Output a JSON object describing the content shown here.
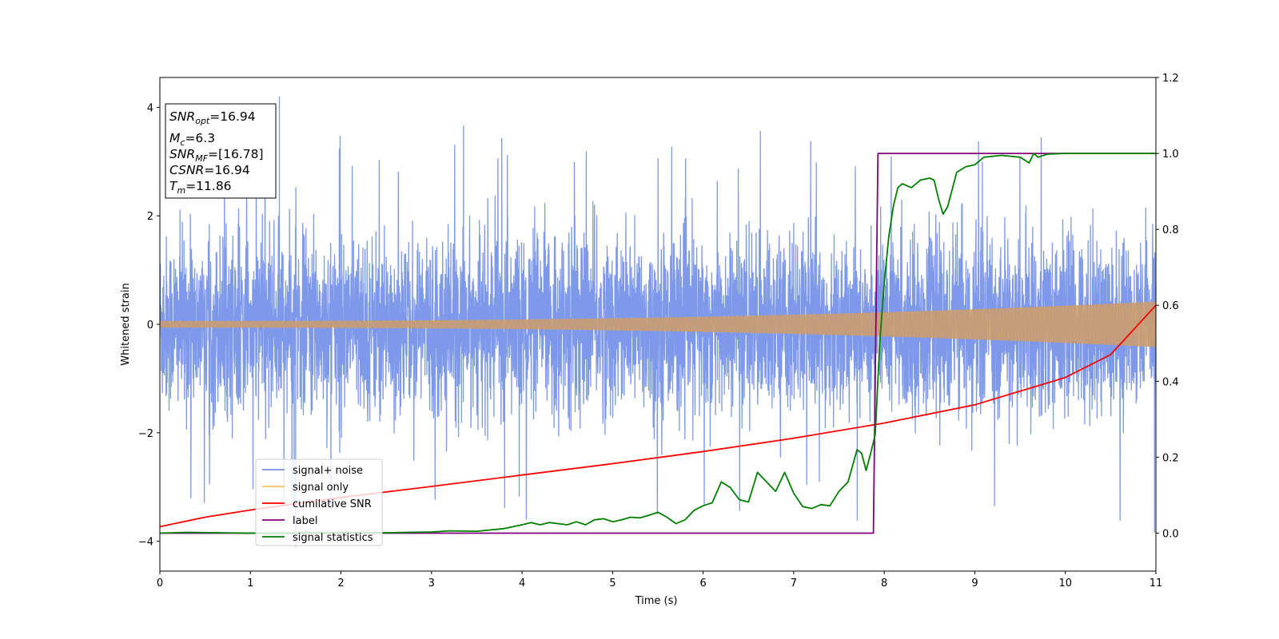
{
  "chart_data": {
    "type": "line",
    "xlabel": "Time (s)",
    "ylabel": "Whitened strain",
    "xlim": [
      0,
      11
    ],
    "ylim": [
      -4.55,
      4.55
    ],
    "y2lim": [
      -0.1,
      1.2
    ],
    "xticks": [
      0,
      1,
      2,
      3,
      4,
      5,
      6,
      7,
      8,
      9,
      10,
      11
    ],
    "yticks": [
      -4,
      -2,
      0,
      2,
      4
    ],
    "y2ticks": [
      "0.0",
      "0.2",
      "0.4",
      "0.6",
      "0.8",
      "1.0",
      "1.2"
    ],
    "grid": false,
    "legend_position": "lower-left",
    "info_box": {
      "snr_opt": {
        "label": "SNR",
        "sub": "opt",
        "value": "=16.94"
      },
      "mc": {
        "label": "M",
        "sub": "c",
        "value": "=6.3"
      },
      "snr_mf": {
        "label": "SNR",
        "sub": "MF",
        "value": "=[16.78]"
      },
      "csnr": {
        "label": "CSNR",
        "value": "=16.94"
      },
      "tm": {
        "label": "T",
        "sub": "m",
        "value": "=11.86"
      }
    },
    "series": [
      {
        "name": "signal+ noise",
        "color": "#7793e8",
        "axis": "left",
        "kind": "noisy-whitened-strain",
        "envelope_typical": [
          -2.0,
          2.2
        ],
        "extremes": {
          "max": 4.2,
          "min": -4.1
        }
      },
      {
        "name": "signal only",
        "color": "#f5c067",
        "axis": "left",
        "kind": "chirp",
        "amplitude_start": 0.06,
        "amplitude_end": 0.42
      },
      {
        "name": "cumilative SNR",
        "color": "#ff0000",
        "axis": "right",
        "x": [
          0,
          0.5,
          1,
          2,
          3,
          4,
          5,
          6,
          7,
          8,
          9,
          10,
          10.5,
          11
        ],
        "y": [
          0.017,
          0.042,
          0.061,
          0.094,
          0.123,
          0.153,
          0.183,
          0.215,
          0.25,
          0.29,
          0.338,
          0.41,
          0.47,
          0.6
        ]
      },
      {
        "name": "label",
        "color": "#800080",
        "axis": "right",
        "x": [
          0,
          7.88,
          7.93,
          11
        ],
        "y": [
          0,
          0,
          1,
          1
        ]
      },
      {
        "name": "signal statistics",
        "color": "#008000",
        "axis": "right",
        "x": [
          0,
          0.3,
          1,
          2,
          2.5,
          3,
          3.2,
          3.5,
          3.8,
          4,
          4.1,
          4.2,
          4.3,
          4.4,
          4.5,
          4.6,
          4.7,
          4.8,
          4.9,
          5.0,
          5.1,
          5.2,
          5.3,
          5.4,
          5.5,
          5.6,
          5.7,
          5.8,
          5.9,
          6.0,
          6.1,
          6.2,
          6.3,
          6.4,
          6.5,
          6.6,
          6.7,
          6.8,
          6.9,
          7.0,
          7.1,
          7.2,
          7.3,
          7.4,
          7.5,
          7.6,
          7.7,
          7.75,
          7.8,
          7.85,
          7.9,
          7.95,
          8.0,
          8.05,
          8.1,
          8.15,
          8.2,
          8.3,
          8.4,
          8.5,
          8.55,
          8.6,
          8.65,
          8.7,
          8.8,
          8.9,
          9.0,
          9.1,
          9.3,
          9.5,
          9.6,
          9.65,
          9.7,
          9.8,
          10.0,
          10.5,
          11
        ],
        "y": [
          0,
          0.002,
          0,
          0.001,
          0.001,
          0.003,
          0.006,
          0.005,
          0.012,
          0.022,
          0.028,
          0.022,
          0.028,
          0.025,
          0.022,
          0.03,
          0.022,
          0.035,
          0.038,
          0.03,
          0.035,
          0.042,
          0.04,
          0.047,
          0.055,
          0.042,
          0.025,
          0.035,
          0.06,
          0.072,
          0.08,
          0.135,
          0.12,
          0.088,
          0.082,
          0.16,
          0.135,
          0.11,
          0.16,
          0.105,
          0.07,
          0.065,
          0.075,
          0.072,
          0.11,
          0.135,
          0.22,
          0.21,
          0.165,
          0.21,
          0.26,
          0.5,
          0.66,
          0.78,
          0.86,
          0.91,
          0.92,
          0.91,
          0.93,
          0.935,
          0.93,
          0.88,
          0.84,
          0.86,
          0.95,
          0.965,
          0.97,
          0.99,
          0.995,
          0.99,
          0.975,
          1.0,
          0.99,
          0.998,
          1.0,
          1.0,
          1.0
        ]
      }
    ]
  }
}
